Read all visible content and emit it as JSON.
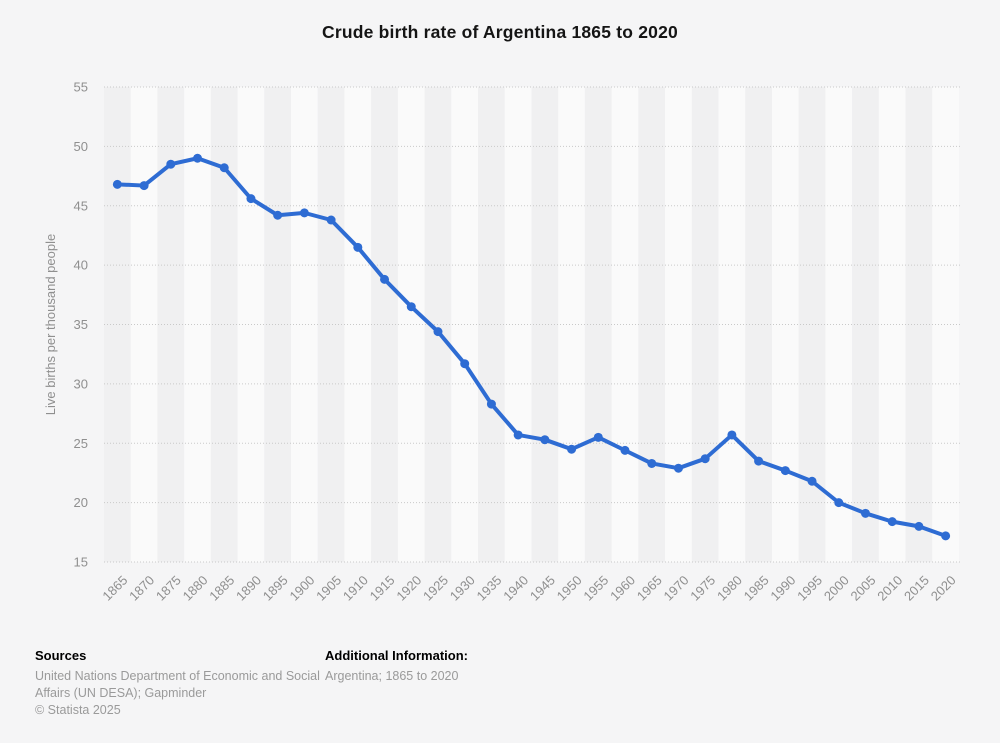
{
  "page": {
    "background_color": "#f5f5f6"
  },
  "chart_data": {
    "type": "line",
    "title": "Crude birth rate of Argentina 1865 to 2020",
    "xlabel": "",
    "ylabel": "Live births per thousand people",
    "x": [
      1865,
      1870,
      1875,
      1880,
      1885,
      1890,
      1895,
      1900,
      1905,
      1910,
      1915,
      1920,
      1925,
      1930,
      1935,
      1940,
      1945,
      1950,
      1955,
      1960,
      1965,
      1970,
      1975,
      1980,
      1985,
      1990,
      1995,
      2000,
      2005,
      2010,
      2015,
      2020
    ],
    "values": [
      46.8,
      46.7,
      48.5,
      49.0,
      48.2,
      45.6,
      44.2,
      44.4,
      43.8,
      41.5,
      38.8,
      36.5,
      34.4,
      31.7,
      28.3,
      25.7,
      25.3,
      24.5,
      25.5,
      24.4,
      23.3,
      22.9,
      23.7,
      25.7,
      23.5,
      22.7,
      21.8,
      20.0,
      19.1,
      18.4,
      18.0,
      17.2
    ],
    "ylim": [
      15,
      55
    ],
    "yticks": [
      15,
      20,
      25,
      30,
      35,
      40,
      45,
      50,
      55
    ],
    "xtick_step": 5,
    "grid": "horizontal-dotted",
    "legend": "none",
    "line_color": "#2e6cd3",
    "marker": "circle",
    "gridline_color": "#c9c9c9",
    "tick_label_color": "#8f8f8f",
    "band_colors": [
      "#f0f0f1",
      "#fafafa"
    ]
  },
  "footer": {
    "sources_heading": "Sources",
    "sources_text": "United Nations Department of Economic and Social Affairs (UN DESA); Gapminder",
    "copyright": "© Statista 2025",
    "additional_heading": "Additional Information:",
    "additional_text": "Argentina; 1865 to 2020"
  }
}
